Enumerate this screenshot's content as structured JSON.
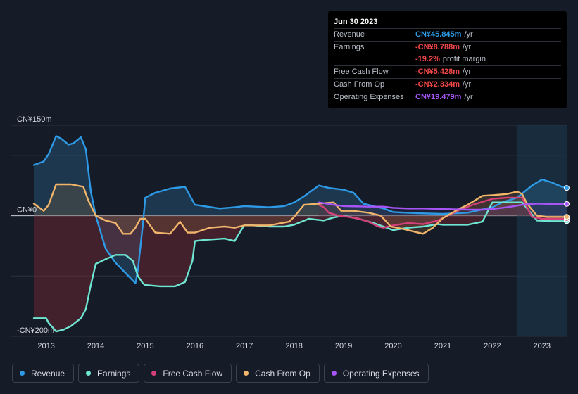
{
  "tooltip": {
    "date": "Jun 30 2023",
    "rows": [
      {
        "label": "Revenue",
        "value": "CN¥45.845m",
        "unit": "/yr",
        "color": "#2e9ae6"
      },
      {
        "label": "Earnings",
        "value": "-CN¥8.788m",
        "unit": "/yr",
        "color": "#f04747"
      },
      {
        "label": "",
        "value": "-19.2%",
        "unit": "profit margin",
        "color": "#f04747"
      },
      {
        "label": "Free Cash Flow",
        "value": "-CN¥5.428m",
        "unit": "/yr",
        "color": "#f04747"
      },
      {
        "label": "Cash From Op",
        "value": "-CN¥2.334m",
        "unit": "/yr",
        "color": "#f04747"
      },
      {
        "label": "Operating Expenses",
        "value": "CN¥19.479m",
        "unit": "/yr",
        "color": "#a855f7"
      }
    ]
  },
  "legend": [
    {
      "label": "Revenue",
      "color": "#2e9ae6"
    },
    {
      "label": "Earnings",
      "color": "#6ee6d2"
    },
    {
      "label": "Free Cash Flow",
      "color": "#d6407a"
    },
    {
      "label": "Cash From Op",
      "color": "#f0b46a"
    },
    {
      "label": "Operating Expenses",
      "color": "#a855f7"
    }
  ],
  "chart_data": {
    "type": "area",
    "title": "",
    "units": "CN¥m",
    "y_tick_labels": [
      "CN¥150m",
      "CN¥0",
      "-CN¥200m"
    ],
    "ylim": [
      -200,
      150
    ],
    "x_tick_labels": [
      "2013",
      "2014",
      "2015",
      "2016",
      "2017",
      "2018",
      "2019",
      "2020",
      "2021",
      "2022",
      "2023"
    ],
    "xlim": [
      2012.75,
      2023.5
    ],
    "highlight_from": 2022.5,
    "series": [
      {
        "name": "Revenue",
        "color": "#2e9ae6",
        "points": [
          [
            2012.75,
            84
          ],
          [
            2012.95,
            90
          ],
          [
            2013.05,
            102
          ],
          [
            2013.2,
            132
          ],
          [
            2013.3,
            128
          ],
          [
            2013.45,
            118
          ],
          [
            2013.55,
            120
          ],
          [
            2013.7,
            130
          ],
          [
            2013.8,
            110
          ],
          [
            2013.9,
            40
          ],
          [
            2014.0,
            0
          ],
          [
            2014.2,
            -55
          ],
          [
            2014.4,
            -78
          ],
          [
            2014.6,
            -95
          ],
          [
            2014.8,
            -112
          ],
          [
            2014.85,
            -90
          ],
          [
            2014.95,
            -15
          ],
          [
            2015.0,
            30
          ],
          [
            2015.2,
            38
          ],
          [
            2015.5,
            45
          ],
          [
            2015.8,
            48
          ],
          [
            2016.0,
            18
          ],
          [
            2016.5,
            12
          ],
          [
            2016.8,
            14
          ],
          [
            2017.0,
            16
          ],
          [
            2017.5,
            14
          ],
          [
            2017.8,
            16
          ],
          [
            2018.0,
            22
          ],
          [
            2018.2,
            32
          ],
          [
            2018.5,
            50
          ],
          [
            2018.7,
            46
          ],
          [
            2019.0,
            43
          ],
          [
            2019.2,
            38
          ],
          [
            2019.4,
            20
          ],
          [
            2019.6,
            16
          ],
          [
            2019.8,
            12
          ],
          [
            2020.0,
            6
          ],
          [
            2020.5,
            4
          ],
          [
            2021.0,
            3
          ],
          [
            2021.5,
            5
          ],
          [
            2022.0,
            14
          ],
          [
            2022.2,
            22
          ],
          [
            2022.5,
            30
          ],
          [
            2022.8,
            50
          ],
          [
            2023.0,
            60
          ],
          [
            2023.2,
            55
          ],
          [
            2023.4,
            48
          ],
          [
            2023.5,
            46
          ]
        ]
      },
      {
        "name": "Earnings",
        "color": "#6ee6d2",
        "points": [
          [
            2012.75,
            -170
          ],
          [
            2013.0,
            -170
          ],
          [
            2013.05,
            -178
          ],
          [
            2013.2,
            -192
          ],
          [
            2013.35,
            -189
          ],
          [
            2013.5,
            -183
          ],
          [
            2013.7,
            -170
          ],
          [
            2013.8,
            -155
          ],
          [
            2013.9,
            -115
          ],
          [
            2014.0,
            -80
          ],
          [
            2014.2,
            -72
          ],
          [
            2014.4,
            -65
          ],
          [
            2014.6,
            -65
          ],
          [
            2014.75,
            -75
          ],
          [
            2014.85,
            -100
          ],
          [
            2014.95,
            -112
          ],
          [
            2015.0,
            -115
          ],
          [
            2015.3,
            -117
          ],
          [
            2015.6,
            -117
          ],
          [
            2015.8,
            -110
          ],
          [
            2015.95,
            -75
          ],
          [
            2016.0,
            -42
          ],
          [
            2016.2,
            -40
          ],
          [
            2016.6,
            -38
          ],
          [
            2016.8,
            -42
          ],
          [
            2017.0,
            -15
          ],
          [
            2017.5,
            -18
          ],
          [
            2017.8,
            -18
          ],
          [
            2018.0,
            -15
          ],
          [
            2018.3,
            -5
          ],
          [
            2018.6,
            -8
          ],
          [
            2018.8,
            -3
          ],
          [
            2019.0,
            0
          ],
          [
            2019.3,
            -5
          ],
          [
            2019.6,
            -12
          ],
          [
            2019.8,
            -18
          ],
          [
            2020.0,
            -24
          ],
          [
            2020.3,
            -20
          ],
          [
            2020.6,
            -18
          ],
          [
            2020.9,
            -14
          ],
          [
            2021.0,
            -15
          ],
          [
            2021.5,
            -15
          ],
          [
            2021.8,
            -10
          ],
          [
            2022.0,
            22
          ],
          [
            2022.3,
            22
          ],
          [
            2022.6,
            22
          ],
          [
            2022.9,
            -8
          ],
          [
            2023.2,
            -9
          ],
          [
            2023.5,
            -9
          ]
        ]
      },
      {
        "name": "Free Cash Flow",
        "color": "#d6407a",
        "points": [
          [
            2018.5,
            18
          ],
          [
            2018.6,
            14
          ],
          [
            2018.7,
            5
          ],
          [
            2018.9,
            0
          ],
          [
            2019.1,
            -2
          ],
          [
            2019.3,
            -5
          ],
          [
            2019.5,
            -10
          ],
          [
            2019.7,
            -18
          ],
          [
            2019.8,
            -20
          ],
          [
            2020.0,
            -16
          ],
          [
            2020.3,
            -12
          ],
          [
            2020.6,
            -14
          ],
          [
            2020.9,
            -8
          ],
          [
            2021.0,
            -4
          ],
          [
            2021.3,
            8
          ],
          [
            2021.6,
            18
          ],
          [
            2022.0,
            28
          ],
          [
            2022.3,
            30
          ],
          [
            2022.6,
            30
          ],
          [
            2022.8,
            -2
          ],
          [
            2023.0,
            -5
          ],
          [
            2023.5,
            -5
          ]
        ]
      },
      {
        "name": "Cash From Op",
        "color": "#f0b46a",
        "points": [
          [
            2012.75,
            20
          ],
          [
            2012.95,
            8
          ],
          [
            2013.05,
            18
          ],
          [
            2013.2,
            52
          ],
          [
            2013.5,
            52
          ],
          [
            2013.75,
            48
          ],
          [
            2013.85,
            25
          ],
          [
            2014.0,
            0
          ],
          [
            2014.2,
            -8
          ],
          [
            2014.4,
            -12
          ],
          [
            2014.55,
            -30
          ],
          [
            2014.7,
            -30
          ],
          [
            2014.8,
            -20
          ],
          [
            2014.9,
            -5
          ],
          [
            2015.0,
            -5
          ],
          [
            2015.2,
            -28
          ],
          [
            2015.5,
            -30
          ],
          [
            2015.7,
            -10
          ],
          [
            2015.85,
            -28
          ],
          [
            2016.0,
            -28
          ],
          [
            2016.3,
            -20
          ],
          [
            2016.6,
            -18
          ],
          [
            2016.8,
            -20
          ],
          [
            2017.0,
            -16
          ],
          [
            2017.5,
            -16
          ],
          [
            2017.9,
            -10
          ],
          [
            2018.0,
            -2
          ],
          [
            2018.2,
            18
          ],
          [
            2018.5,
            20
          ],
          [
            2018.8,
            22
          ],
          [
            2018.95,
            8
          ],
          [
            2019.2,
            8
          ],
          [
            2019.5,
            5
          ],
          [
            2019.75,
            0
          ],
          [
            2019.95,
            -18
          ],
          [
            2020.2,
            -22
          ],
          [
            2020.5,
            -28
          ],
          [
            2020.6,
            -30
          ],
          [
            2020.8,
            -20
          ],
          [
            2021.0,
            -4
          ],
          [
            2021.3,
            10
          ],
          [
            2021.5,
            18
          ],
          [
            2021.8,
            33
          ],
          [
            2022.0,
            34
          ],
          [
            2022.3,
            36
          ],
          [
            2022.5,
            40
          ],
          [
            2022.6,
            36
          ],
          [
            2022.7,
            20
          ],
          [
            2022.9,
            0
          ],
          [
            2023.1,
            -2
          ],
          [
            2023.5,
            -2
          ]
        ]
      },
      {
        "name": "Operating Expenses",
        "color": "#a855f7",
        "points": [
          [
            2018.5,
            22
          ],
          [
            2018.8,
            18
          ],
          [
            2019.0,
            16
          ],
          [
            2019.5,
            15
          ],
          [
            2019.8,
            15
          ],
          [
            2020.0,
            13
          ],
          [
            2020.3,
            12
          ],
          [
            2020.6,
            12
          ],
          [
            2021.0,
            11
          ],
          [
            2021.5,
            10
          ],
          [
            2021.8,
            10
          ],
          [
            2022.0,
            11
          ],
          [
            2022.3,
            14
          ],
          [
            2022.6,
            18
          ],
          [
            2022.9,
            20
          ],
          [
            2023.2,
            19.5
          ],
          [
            2023.5,
            19.5
          ]
        ]
      }
    ]
  }
}
